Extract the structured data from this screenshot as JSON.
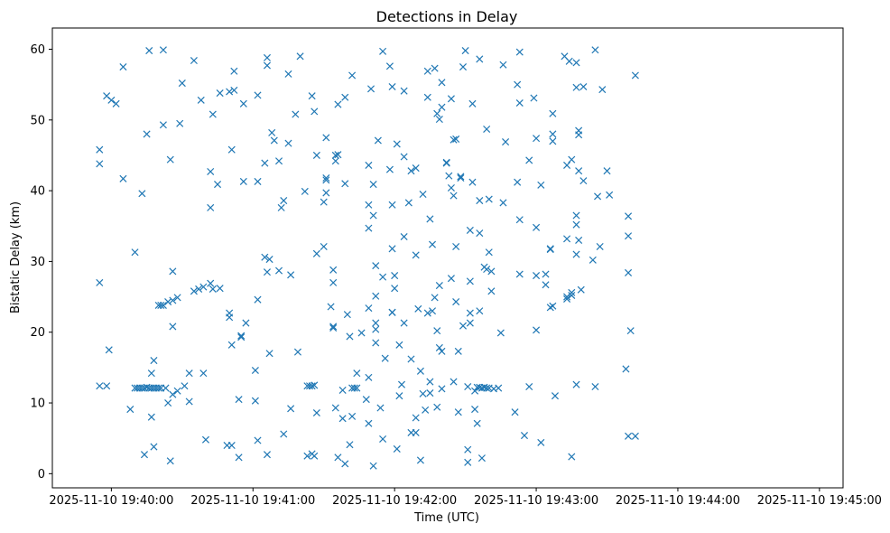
{
  "chart_data": {
    "type": "scatter",
    "title": "Detections in Delay",
    "xlabel": "Time (UTC)",
    "ylabel": "Bistatic Delay (km)",
    "marker": "x",
    "color": "#1f77b4",
    "xlim": [
      "2025-11-10 19:39:35",
      "2025-11-10 19:45:10"
    ],
    "ylim": [
      -2,
      63
    ],
    "xticks": [
      "2025-11-10 19:40:00",
      "2025-11-10 19:41:00",
      "2025-11-10 19:42:00",
      "2025-11-10 19:43:00",
      "2025-11-10 19:44:00",
      "2025-11-10 19:45:00"
    ],
    "yticks": [
      0,
      10,
      20,
      30,
      40,
      50,
      60
    ],
    "grid": false,
    "points": [
      [
        "19:39:55",
        45.8
      ],
      [
        "19:39:55",
        43.8
      ],
      [
        "19:39:55",
        27.0
      ],
      [
        "19:39:55",
        12.4
      ],
      [
        "19:39:58",
        53.4
      ],
      [
        "19:39:58",
        12.4
      ],
      [
        "19:39:59",
        17.5
      ],
      [
        "19:40:00",
        52.8
      ],
      [
        "19:40:02",
        52.3
      ],
      [
        "19:40:05",
        57.5
      ],
      [
        "19:40:05",
        41.7
      ],
      [
        "19:40:08",
        9.1
      ],
      [
        "19:40:10",
        31.3
      ],
      [
        "19:40:10",
        12.1
      ],
      [
        "19:40:11",
        12.1
      ],
      [
        "19:40:12",
        12.1
      ],
      [
        "19:40:13",
        39.6
      ],
      [
        "19:40:13",
        12.1
      ],
      [
        "19:40:14",
        2.7
      ],
      [
        "19:40:14",
        12.1
      ],
      [
        "19:40:15",
        48.0
      ],
      [
        "19:40:15",
        12.2
      ],
      [
        "19:40:16",
        59.8
      ],
      [
        "19:40:16",
        12.1
      ],
      [
        "19:40:17",
        8.0
      ],
      [
        "19:40:17",
        14.2
      ],
      [
        "19:40:17",
        12.1
      ],
      [
        "19:40:18",
        16.0
      ],
      [
        "19:40:18",
        3.8
      ],
      [
        "19:40:18",
        12.1
      ],
      [
        "19:40:19",
        12.1
      ],
      [
        "19:40:20",
        23.8
      ],
      [
        "19:40:20",
        12.1
      ],
      [
        "19:40:21",
        23.8
      ],
      [
        "19:40:21",
        12.1
      ],
      [
        "19:40:22",
        49.3
      ],
      [
        "19:40:22",
        59.9
      ],
      [
        "19:40:22",
        23.8
      ],
      [
        "19:40:23",
        12.1
      ],
      [
        "19:40:24",
        10.0
      ],
      [
        "19:40:24",
        24.3
      ],
      [
        "19:40:25",
        44.4
      ],
      [
        "19:40:25",
        1.8
      ],
      [
        "19:40:26",
        28.6
      ],
      [
        "19:40:26",
        24.5
      ],
      [
        "19:40:26",
        20.8
      ],
      [
        "19:40:26",
        11.2
      ],
      [
        "19:40:28",
        24.9
      ],
      [
        "19:40:28",
        11.7
      ],
      [
        "19:40:29",
        49.5
      ],
      [
        "19:40:30",
        55.2
      ],
      [
        "19:40:31",
        12.4
      ],
      [
        "19:40:33",
        10.2
      ],
      [
        "19:40:33",
        14.2
      ],
      [
        "19:40:35",
        58.4
      ],
      [
        "19:40:35",
        25.8
      ],
      [
        "19:40:37",
        26.1
      ],
      [
        "19:40:38",
        52.8
      ],
      [
        "19:40:39",
        26.4
      ],
      [
        "19:40:39",
        14.2
      ],
      [
        "19:40:40",
        4.8
      ],
      [
        "19:40:42",
        37.6
      ],
      [
        "19:40:42",
        42.7
      ],
      [
        "19:40:42",
        26.9
      ],
      [
        "19:40:43",
        50.8
      ],
      [
        "19:40:43",
        26.1
      ],
      [
        "19:40:45",
        40.9
      ],
      [
        "19:40:46",
        53.8
      ],
      [
        "19:40:46",
        26.2
      ],
      [
        "19:40:49",
        4.0
      ],
      [
        "19:40:50",
        54.0
      ],
      [
        "19:40:50",
        22.7
      ],
      [
        "19:40:50",
        22.1
      ],
      [
        "19:40:51",
        4.0
      ],
      [
        "19:40:51",
        45.8
      ],
      [
        "19:40:51",
        18.2
      ],
      [
        "19:40:52",
        56.9
      ],
      [
        "19:40:52",
        54.2
      ],
      [
        "19:40:54",
        2.3
      ],
      [
        "19:40:54",
        10.5
      ],
      [
        "19:40:55",
        19.3
      ],
      [
        "19:40:55",
        19.5
      ],
      [
        "19:40:56",
        52.3
      ],
      [
        "19:40:56",
        41.3
      ],
      [
        "19:40:57",
        21.3
      ],
      [
        "19:41:01",
        14.6
      ],
      [
        "19:41:01",
        10.3
      ],
      [
        "19:41:02",
        53.5
      ],
      [
        "19:41:02",
        41.3
      ],
      [
        "19:41:02",
        24.6
      ],
      [
        "19:41:02",
        4.7
      ],
      [
        "19:41:05",
        43.9
      ],
      [
        "19:41:05",
        30.6
      ],
      [
        "19:41:06",
        58.8
      ],
      [
        "19:41:06",
        57.7
      ],
      [
        "19:41:06",
        28.5
      ],
      [
        "19:41:06",
        2.7
      ],
      [
        "19:41:07",
        30.3
      ],
      [
        "19:41:07",
        17.0
      ],
      [
        "19:41:08",
        48.2
      ],
      [
        "19:41:09",
        47.1
      ],
      [
        "19:41:11",
        44.2
      ],
      [
        "19:41:11",
        28.7
      ],
      [
        "19:41:12",
        37.6
      ],
      [
        "19:41:13",
        38.6
      ],
      [
        "19:41:13",
        5.6
      ],
      [
        "19:41:15",
        56.5
      ],
      [
        "19:41:15",
        46.7
      ],
      [
        "19:41:16",
        28.1
      ],
      [
        "19:41:16",
        9.2
      ],
      [
        "19:41:18",
        50.8
      ],
      [
        "19:41:19",
        17.2
      ],
      [
        "19:41:20",
        59.0
      ],
      [
        "19:41:22",
        39.9
      ],
      [
        "19:41:23",
        12.4
      ],
      [
        "19:41:23",
        2.5
      ],
      [
        "19:41:24",
        12.4
      ],
      [
        "19:41:25",
        53.4
      ],
      [
        "19:41:25",
        12.4
      ],
      [
        "19:41:25",
        2.8
      ],
      [
        "19:41:26",
        51.2
      ],
      [
        "19:41:26",
        12.5
      ],
      [
        "19:41:26",
        2.5
      ],
      [
        "19:41:27",
        45.0
      ],
      [
        "19:41:27",
        31.1
      ],
      [
        "19:41:27",
        8.6
      ],
      [
        "19:41:30",
        38.4
      ],
      [
        "19:41:30",
        32.1
      ],
      [
        "19:41:31",
        41.5
      ],
      [
        "19:41:31",
        41.8
      ],
      [
        "19:41:31",
        47.5
      ],
      [
        "19:41:31",
        39.7
      ],
      [
        "19:41:33",
        23.6
      ],
      [
        "19:41:34",
        28.8
      ],
      [
        "19:41:34",
        20.6
      ],
      [
        "19:41:34",
        20.8
      ],
      [
        "19:41:34",
        27.0
      ],
      [
        "19:41:35",
        44.2
      ],
      [
        "19:41:35",
        45.0
      ],
      [
        "19:41:35",
        9.3
      ],
      [
        "19:41:36",
        45.1
      ],
      [
        "19:41:36",
        52.2
      ],
      [
        "19:41:36",
        2.3
      ],
      [
        "19:41:38",
        11.8
      ],
      [
        "19:41:38",
        7.8
      ],
      [
        "19:41:39",
        41.0
      ],
      [
        "19:41:39",
        53.2
      ],
      [
        "19:41:39",
        1.4
      ],
      [
        "19:41:40",
        22.5
      ],
      [
        "19:41:41",
        19.4
      ],
      [
        "19:41:41",
        4.1
      ],
      [
        "19:41:42",
        56.3
      ],
      [
        "19:41:42",
        8.1
      ],
      [
        "19:41:42",
        12.1
      ],
      [
        "19:41:43",
        12.1
      ],
      [
        "19:41:44",
        14.2
      ],
      [
        "19:41:44",
        12.1
      ],
      [
        "19:41:46",
        19.9
      ],
      [
        "19:41:48",
        10.5
      ],
      [
        "19:41:49",
        43.6
      ],
      [
        "19:41:49",
        38.0
      ],
      [
        "19:41:49",
        34.7
      ],
      [
        "19:41:49",
        13.6
      ],
      [
        "19:41:49",
        7.1
      ],
      [
        "19:41:49",
        23.4
      ],
      [
        "19:41:50",
        54.4
      ],
      [
        "19:41:51",
        36.5
      ],
      [
        "19:41:51",
        40.9
      ],
      [
        "19:41:51",
        1.1
      ],
      [
        "19:41:52",
        29.4
      ],
      [
        "19:41:52",
        25.1
      ],
      [
        "19:41:52",
        21.3
      ],
      [
        "19:41:52",
        20.4
      ],
      [
        "19:41:52",
        18.5
      ],
      [
        "19:41:53",
        47.1
      ],
      [
        "19:41:54",
        9.3
      ],
      [
        "19:41:55",
        59.7
      ],
      [
        "19:41:55",
        4.9
      ],
      [
        "19:41:55",
        27.8
      ],
      [
        "19:41:56",
        16.3
      ],
      [
        "19:41:58",
        57.6
      ],
      [
        "19:41:58",
        43.0
      ],
      [
        "19:41:59",
        54.7
      ],
      [
        "19:41:59",
        31.8
      ],
      [
        "19:41:59",
        38.0
      ],
      [
        "19:41:59",
        22.8
      ],
      [
        "19:41:59",
        22.8
      ],
      [
        "19:42:00",
        28.0
      ],
      [
        "19:42:00",
        26.2
      ],
      [
        "19:42:01",
        46.6
      ],
      [
        "19:42:01",
        3.5
      ],
      [
        "19:42:02",
        18.2
      ],
      [
        "19:42:02",
        11.0
      ],
      [
        "19:42:03",
        12.6
      ],
      [
        "19:42:04",
        54.1
      ],
      [
        "19:42:04",
        44.8
      ],
      [
        "19:42:04",
        33.5
      ],
      [
        "19:42:04",
        21.3
      ],
      [
        "19:42:06",
        38.3
      ],
      [
        "19:42:07",
        42.8
      ],
      [
        "19:42:07",
        16.2
      ],
      [
        "19:42:07",
        5.8
      ],
      [
        "19:42:09",
        43.2
      ],
      [
        "19:42:09",
        30.9
      ],
      [
        "19:42:09",
        7.9
      ],
      [
        "19:42:09",
        5.8
      ],
      [
        "19:42:10",
        23.3
      ],
      [
        "19:42:11",
        14.5
      ],
      [
        "19:42:11",
        1.9
      ],
      [
        "19:42:12",
        11.3
      ],
      [
        "19:42:12",
        39.5
      ],
      [
        "19:42:13",
        9.0
      ],
      [
        "19:42:14",
        53.2
      ],
      [
        "19:42:14",
        22.7
      ],
      [
        "19:42:14",
        56.9
      ],
      [
        "19:42:15",
        36.0
      ],
      [
        "19:42:15",
        13.0
      ],
      [
        "19:42:15",
        11.4
      ],
      [
        "19:42:16",
        32.4
      ],
      [
        "19:42:16",
        23.0
      ],
      [
        "19:42:17",
        57.3
      ],
      [
        "19:42:17",
        24.9
      ],
      [
        "19:42:18",
        20.2
      ],
      [
        "19:42:18",
        9.4
      ],
      [
        "19:42:18",
        50.9
      ],
      [
        "19:42:19",
        50.1
      ],
      [
        "19:42:19",
        26.6
      ],
      [
        "19:42:19",
        17.8
      ],
      [
        "19:42:20",
        55.3
      ],
      [
        "19:42:20",
        51.8
      ],
      [
        "19:42:20",
        17.3
      ],
      [
        "19:42:20",
        12.0
      ],
      [
        "19:42:22",
        44.0
      ],
      [
        "19:42:22",
        43.9
      ],
      [
        "19:42:23",
        42.1
      ],
      [
        "19:42:24",
        53.0
      ],
      [
        "19:42:24",
        40.4
      ],
      [
        "19:42:24",
        27.6
      ],
      [
        "19:42:25",
        39.3
      ],
      [
        "19:42:25",
        47.2
      ],
      [
        "19:42:25",
        13.0
      ],
      [
        "19:42:26",
        47.3
      ],
      [
        "19:42:26",
        32.1
      ],
      [
        "19:42:26",
        24.3
      ],
      [
        "19:42:27",
        8.7
      ],
      [
        "19:42:27",
        17.3
      ],
      [
        "19:42:28",
        42.0
      ],
      [
        "19:42:28",
        41.8
      ],
      [
        "19:42:29",
        57.5
      ],
      [
        "19:42:29",
        20.9
      ],
      [
        "19:42:30",
        59.8
      ],
      [
        "19:42:31",
        12.3
      ],
      [
        "19:42:31",
        3.4
      ],
      [
        "19:42:31",
        1.6
      ],
      [
        "19:42:32",
        34.4
      ],
      [
        "19:42:32",
        27.2
      ],
      [
        "19:42:32",
        22.7
      ],
      [
        "19:42:32",
        21.3
      ],
      [
        "19:42:33",
        52.3
      ],
      [
        "19:42:33",
        41.2
      ],
      [
        "19:42:34",
        11.7
      ],
      [
        "19:42:34",
        9.1
      ],
      [
        "19:42:35",
        12.2
      ],
      [
        "19:42:35",
        7.1
      ],
      [
        "19:42:36",
        58.6
      ],
      [
        "19:42:36",
        34.0
      ],
      [
        "19:42:36",
        38.6
      ],
      [
        "19:42:36",
        23.0
      ],
      [
        "19:42:36",
        12.2
      ],
      [
        "19:42:37",
        12.1
      ],
      [
        "19:42:37",
        2.2
      ],
      [
        "19:42:38",
        29.2
      ],
      [
        "19:42:38",
        12.2
      ],
      [
        "19:42:39",
        48.7
      ],
      [
        "19:42:39",
        12.1
      ],
      [
        "19:42:39",
        28.9
      ],
      [
        "19:42:40",
        38.8
      ],
      [
        "19:42:40",
        31.3
      ],
      [
        "19:42:40",
        12.1
      ],
      [
        "19:42:41",
        25.8
      ],
      [
        "19:42:41",
        28.6
      ],
      [
        "19:42:42",
        12.0
      ],
      [
        "19:42:44",
        12.1
      ],
      [
        "19:42:45",
        19.9
      ],
      [
        "19:42:46",
        57.8
      ],
      [
        "19:42:46",
        38.3
      ],
      [
        "19:42:47",
        46.9
      ],
      [
        "19:42:51",
        8.7
      ],
      [
        "19:42:52",
        55.0
      ],
      [
        "19:42:52",
        41.2
      ],
      [
        "19:42:53",
        59.6
      ],
      [
        "19:42:53",
        35.9
      ],
      [
        "19:42:53",
        28.2
      ],
      [
        "19:42:53",
        52.4
      ],
      [
        "19:42:55",
        5.4
      ],
      [
        "19:42:57",
        44.3
      ],
      [
        "19:42:57",
        12.3
      ],
      [
        "19:42:59",
        53.1
      ],
      [
        "19:43:00",
        34.8
      ],
      [
        "19:43:00",
        28.0
      ],
      [
        "19:43:00",
        20.3
      ],
      [
        "19:43:00",
        47.4
      ],
      [
        "19:43:02",
        40.8
      ],
      [
        "19:43:02",
        4.4
      ],
      [
        "19:43:04",
        26.7
      ],
      [
        "19:43:04",
        28.2
      ],
      [
        "19:43:06",
        31.7
      ],
      [
        "19:43:06",
        23.5
      ],
      [
        "19:43:06",
        31.8
      ],
      [
        "19:43:07",
        50.9
      ],
      [
        "19:43:07",
        48.0
      ],
      [
        "19:43:07",
        47.0
      ],
      [
        "19:43:07",
        23.7
      ],
      [
        "19:43:08",
        11.0
      ],
      [
        "19:43:12",
        59.0
      ],
      [
        "19:43:13",
        43.6
      ],
      [
        "19:43:13",
        33.2
      ],
      [
        "19:43:13",
        25.0
      ],
      [
        "19:43:13",
        24.7
      ],
      [
        "19:43:14",
        58.3
      ],
      [
        "19:43:15",
        44.4
      ],
      [
        "19:43:15",
        25.6
      ],
      [
        "19:43:15",
        25.2
      ],
      [
        "19:43:15",
        2.4
      ],
      [
        "19:43:17",
        58.1
      ],
      [
        "19:43:17",
        54.6
      ],
      [
        "19:43:17",
        36.5
      ],
      [
        "19:43:17",
        35.2
      ],
      [
        "19:43:17",
        31.0
      ],
      [
        "19:43:17",
        12.6
      ],
      [
        "19:43:18",
        48.5
      ],
      [
        "19:43:18",
        47.9
      ],
      [
        "19:43:18",
        42.8
      ],
      [
        "19:43:18",
        33.0
      ],
      [
        "19:43:19",
        26.0
      ],
      [
        "19:43:20",
        54.7
      ],
      [
        "19:43:20",
        41.4
      ],
      [
        "19:43:24",
        30.2
      ],
      [
        "19:43:25",
        59.9
      ],
      [
        "19:43:25",
        12.3
      ],
      [
        "19:43:26",
        39.2
      ],
      [
        "19:43:27",
        32.1
      ],
      [
        "19:43:28",
        54.3
      ],
      [
        "19:43:30",
        42.8
      ],
      [
        "19:43:31",
        39.4
      ],
      [
        "19:43:38",
        14.8
      ],
      [
        "19:43:39",
        36.4
      ],
      [
        "19:43:39",
        33.6
      ],
      [
        "19:43:39",
        28.4
      ],
      [
        "19:43:40",
        20.2
      ],
      [
        "19:43:39",
        5.3
      ],
      [
        "19:43:42",
        56.3
      ],
      [
        "19:43:42",
        5.3
      ]
    ]
  }
}
